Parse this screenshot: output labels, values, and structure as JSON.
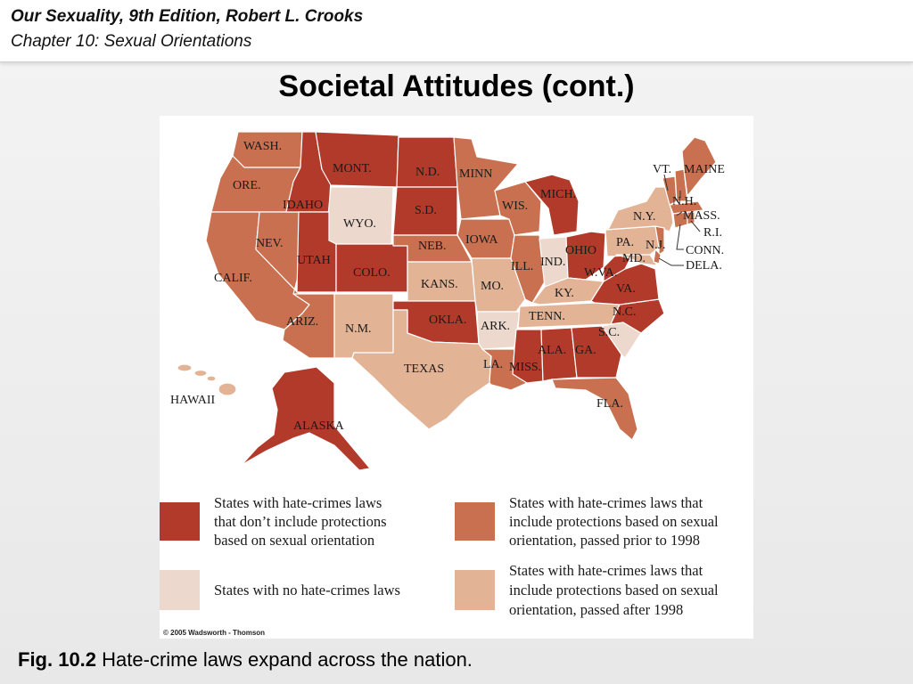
{
  "header": {
    "book_title": "Our Sexuality, 9th Edition, Robert L. Crooks",
    "chapter_title": "Chapter 10: Sexual Orientations"
  },
  "slide": {
    "title": "Societal Attitudes (cont.)"
  },
  "colors": {
    "no_orientation_protection": "#b23a2a",
    "protection_prior_1998": "#c8704f",
    "no_hate_crime_laws": "#ecd8cc",
    "protection_after_1998": "#e3b396"
  },
  "map": {
    "state_labels": {
      "wash": "WASH.",
      "ore": "ORE.",
      "calif": "CALIF.",
      "idaho": "IDAHO",
      "nev": "NEV.",
      "mont": "MONT.",
      "wyo": "WYO.",
      "utah": "UTAH",
      "ariz": "ARIZ.",
      "colo": "COLO.",
      "nm": "N.M.",
      "nd": "N.D.",
      "sd": "S.D.",
      "neb": "NEB.",
      "kans": "KANS.",
      "okla": "OKLA.",
      "texas": "TEXAS",
      "minn": "MINN",
      "iowa": "IOWA",
      "mo": "MO.",
      "ark": "ARK.",
      "la": "LA.",
      "wis": "WIS.",
      "ill": "ILL.",
      "mich": "MICH.",
      "ind": "IND.",
      "ohio": "OHIO",
      "ky": "KY.",
      "tenn": "TENN.",
      "miss": "MISS.",
      "ala": "ALA.",
      "ga": "GA.",
      "fla": "FLA.",
      "sc": "S.C.",
      "nc": "N.C.",
      "va": "VA.",
      "wva": "W.VA.",
      "pa": "PA.",
      "ny": "N.Y.",
      "vt": "VT.",
      "nh": "N.H.",
      "maine": "MAINE",
      "mass": "MASS.",
      "ri": "R.I.",
      "conn": "CONN.",
      "nj": "N.J.",
      "dela": "DELA.",
      "md": "MD.",
      "hawaii": "HAWAII",
      "alaska": "ALASKA"
    },
    "states": {
      "wash": "prior_1998",
      "ore": "prior_1998",
      "calif": "prior_1998",
      "idaho": "no_orientation",
      "nev": "prior_1998",
      "mont": "no_orientation",
      "wyo": "none",
      "utah": "no_orientation",
      "ariz": "prior_1998",
      "colo": "no_orientation",
      "nm": "after_1998",
      "nd": "no_orientation",
      "sd": "no_orientation",
      "neb": "prior_1998",
      "kans": "after_1998",
      "okla": "no_orientation",
      "texas": "after_1998",
      "minn": "prior_1998",
      "iowa": "prior_1998",
      "mo": "after_1998",
      "ark": "none",
      "la": "prior_1998",
      "wis": "prior_1998",
      "ill": "prior_1998",
      "mich": "no_orientation",
      "ind": "none",
      "ohio": "no_orientation",
      "ky": "after_1998",
      "tenn": "after_1998",
      "miss": "no_orientation",
      "ala": "no_orientation",
      "ga": "no_orientation",
      "fla": "prior_1998",
      "sc": "none",
      "nc": "no_orientation",
      "va": "no_orientation",
      "wva": "no_orientation",
      "pa": "after_1998",
      "ny": "after_1998",
      "vt": "prior_1998",
      "nh": "prior_1998",
      "maine": "prior_1998",
      "mass": "prior_1998",
      "ri": "prior_1998",
      "conn": "prior_1998",
      "nj": "prior_1998",
      "dela": "prior_1998",
      "md": "after_1998",
      "hawaii": "after_1998",
      "alaska": "no_orientation"
    }
  },
  "legend": {
    "item1": [
      "States with hate-crimes laws",
      "that don’t include protections",
      "based on sexual orientation"
    ],
    "item2": [
      "States with hate-crimes laws that",
      "include protections based on sexual",
      "orientation, passed prior to 1998"
    ],
    "item3": [
      "States with no hate-crimes laws"
    ],
    "item4": [
      "States with hate-crimes laws that",
      "include protections based on sexual",
      "orientation, passed after 1998"
    ]
  },
  "copyright": "© 2005 Wadsworth - Thomson",
  "caption": {
    "label": "Fig. 10.2",
    "text": " Hate-crime laws expand across the nation."
  }
}
